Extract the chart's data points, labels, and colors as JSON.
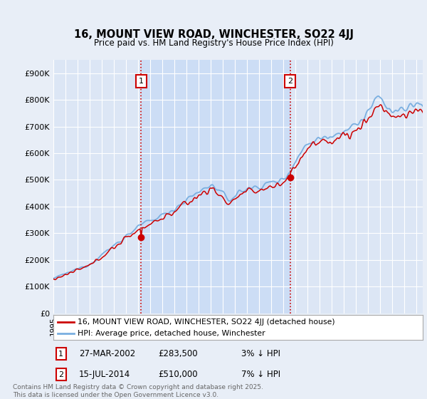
{
  "title_line1": "16, MOUNT VIEW ROAD, WINCHESTER, SO22 4JJ",
  "title_line2": "Price paid vs. HM Land Registry's House Price Index (HPI)",
  "ylim": [
    0,
    950000
  ],
  "yticks": [
    0,
    100000,
    200000,
    300000,
    400000,
    500000,
    600000,
    700000,
    800000,
    900000
  ],
  "ytick_labels": [
    "£0",
    "£100K",
    "£200K",
    "£300K",
    "£400K",
    "£500K",
    "£600K",
    "£700K",
    "£800K",
    "£900K"
  ],
  "hpi_color": "#7aafe0",
  "price_color": "#cc0000",
  "vline_color": "#cc0000",
  "background_color": "#e8eef7",
  "plot_bg_color": "#dce6f5",
  "shaded_bg_color": "#ccddf5",
  "grid_color": "#ffffff",
  "marker1_x": 2002.24,
  "marker1_y": 283500,
  "marker2_x": 2014.54,
  "marker2_y": 510000,
  "legend_line1": "16, MOUNT VIEW ROAD, WINCHESTER, SO22 4JJ (detached house)",
  "legend_line2": "HPI: Average price, detached house, Winchester",
  "footnote": "Contains HM Land Registry data © Crown copyright and database right 2025.\nThis data is licensed under the Open Government Licence v3.0.",
  "xmin": 1995.0,
  "xmax": 2025.5
}
